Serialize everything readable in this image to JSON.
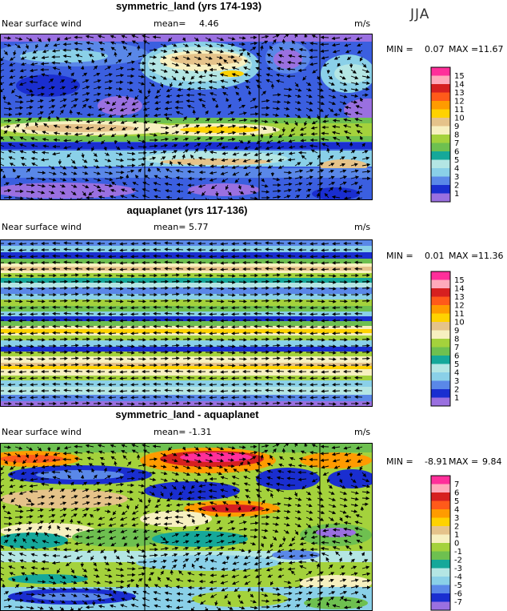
{
  "season": "JJA",
  "palette": {
    "frame": "#000000",
    "arrow": "#000000",
    "colorbar_border": "#000000"
  },
  "panels": [
    {
      "id": "symmetric_land",
      "title": "symmetric_land (yrs 174-193)",
      "variable": "Near surface wind",
      "mean_label": "mean=",
      "mean_value": "4.46",
      "units": "m/s",
      "min_label": "MIN =",
      "min_value": "0.07",
      "max_label": "MAX =",
      "max_value": "11.67",
      "legend": [
        "15",
        "14",
        "13",
        "12",
        "11",
        "10",
        "9",
        "8",
        "7",
        "6",
        "5",
        "4",
        "3",
        "2",
        "1"
      ],
      "legend_colors": [
        "#ff2f9a",
        "#ffaabb",
        "#d62020",
        "#ff5a1a",
        "#ff9b00",
        "#ffd200",
        "#e5c38a",
        "#f7f0c0",
        "#a4d23c",
        "#6ec050",
        "#15a89a",
        "#b4e6e4",
        "#8ad0e8",
        "#5a88e8",
        "#1a2ed0",
        "#9a70e0"
      ]
    },
    {
      "id": "aquaplanet",
      "title": "aquaplanet (yrs 117-136)",
      "variable": "Near surface wind",
      "mean_label": "mean=",
      "mean_value": "5.77",
      "units": "m/s",
      "min_label": "MIN =",
      "min_value": "0.01",
      "max_label": "MAX =",
      "max_value": "11.36",
      "legend": [
        "15",
        "14",
        "13",
        "12",
        "11",
        "10",
        "9",
        "8",
        "7",
        "6",
        "5",
        "4",
        "3",
        "2",
        "1"
      ],
      "legend_colors": [
        "#ff2f9a",
        "#ffaabb",
        "#d62020",
        "#ff5a1a",
        "#ff9b00",
        "#ffd200",
        "#e5c38a",
        "#f7f0c0",
        "#a4d23c",
        "#6ec050",
        "#15a89a",
        "#b4e6e4",
        "#8ad0e8",
        "#5a88e8",
        "#1a2ed0",
        "#9a70e0"
      ]
    },
    {
      "id": "difference",
      "title": "symmetric_land - aquaplanet",
      "variable": "Near surface wind",
      "mean_label": "mean=",
      "mean_value": "-1.31",
      "units": "m/s",
      "min_label": "MIN =",
      "min_value": "-8.91",
      "max_label": "MAX =",
      "max_value": "9.84",
      "legend": [
        "7",
        "6",
        "5",
        "4",
        "3",
        "2",
        "1",
        "0",
        "-1",
        "-2",
        "-3",
        "-4",
        "-5",
        "-6",
        "-7"
      ],
      "legend_colors": [
        "#ff2f9a",
        "#ffaabb",
        "#d62020",
        "#ff5a1a",
        "#ff9b00",
        "#ffd200",
        "#e5c38a",
        "#f7f0c0",
        "#a4d23c",
        "#6ec050",
        "#15a89a",
        "#b4e6e4",
        "#8ad0e8",
        "#5a88e8",
        "#1a2ed0",
        "#9a70e0"
      ]
    }
  ]
}
